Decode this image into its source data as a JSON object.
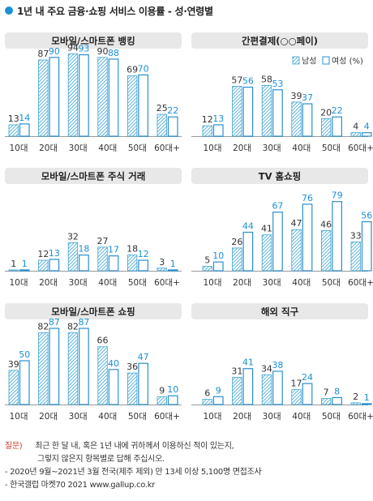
{
  "title": "1년 내 주요 금융·쇼핑 서비스 이용률 - 성·연령별",
  "legend": {
    "male": "남성",
    "female": "여성 (%)"
  },
  "colors": {
    "male": "#3aa3d2",
    "female": "#2a8fd0",
    "female_label": "#1b8fd8",
    "accent": "#1b8fd8",
    "header_bg": "#e8e8e8",
    "axis": "#999999"
  },
  "categories": [
    "10대",
    "20대",
    "30대",
    "40대",
    "50대",
    "60대+"
  ],
  "footer": {
    "question_label": "질문)",
    "question_line1": "최근 한 달 내, 혹은 1년 내에 귀하께서 이용하신 적이 있는지,",
    "question_line2": "그렇지 않은지 항목별로 답해 주십시오.",
    "note1": "- 2020년 9월~2021년 3월 전국(제주 제외) 만 13세 이상 5,100명 면접조사",
    "note2": "- 한국갤럽 마켓70 2021 www.gallup.co.kr"
  },
  "chart_data": [
    {
      "type": "bar",
      "title": "모바일/스마트폰 뱅킹",
      "categories": [
        "10대",
        "20대",
        "30대",
        "40대",
        "50대",
        "60대+"
      ],
      "series": [
        {
          "name": "남성",
          "values": [
            13,
            87,
            94,
            90,
            69,
            25
          ]
        },
        {
          "name": "여성 (%)",
          "values": [
            14,
            90,
            93,
            88,
            70,
            22
          ]
        }
      ],
      "ylim": [
        0,
        100
      ]
    },
    {
      "type": "bar",
      "title": "간편결제(○○페이)",
      "categories": [
        "10대",
        "20대",
        "30대",
        "40대",
        "50대",
        "60대+"
      ],
      "series": [
        {
          "name": "남성",
          "values": [
            12,
            57,
            58,
            39,
            20,
            4
          ]
        },
        {
          "name": "여성 (%)",
          "values": [
            13,
            56,
            53,
            37,
            22,
            4
          ]
        }
      ],
      "ylim": [
        0,
        100
      ]
    },
    {
      "type": "bar",
      "title": "모바일/스마트폰 주식 거래",
      "categories": [
        "10대",
        "20대",
        "30대",
        "40대",
        "50대",
        "60대+"
      ],
      "series": [
        {
          "name": "남성",
          "values": [
            1,
            12,
            32,
            27,
            18,
            3
          ]
        },
        {
          "name": "여성 (%)",
          "values": [
            1,
            13,
            18,
            17,
            12,
            1
          ]
        }
      ],
      "ylim": [
        0,
        100
      ]
    },
    {
      "type": "bar",
      "title": "TV 홈쇼핑",
      "categories": [
        "10대",
        "20대",
        "30대",
        "40대",
        "50대",
        "60대+"
      ],
      "series": [
        {
          "name": "남성",
          "values": [
            5,
            26,
            41,
            47,
            46,
            33
          ]
        },
        {
          "name": "여성 (%)",
          "values": [
            10,
            44,
            67,
            76,
            79,
            56
          ]
        }
      ],
      "ylim": [
        0,
        100
      ]
    },
    {
      "type": "bar",
      "title": "모바일/스마트폰 쇼핑",
      "categories": [
        "10대",
        "20대",
        "30대",
        "40대",
        "50대",
        "60대+"
      ],
      "series": [
        {
          "name": "남성",
          "values": [
            39,
            82,
            82,
            66,
            36,
            9
          ]
        },
        {
          "name": "여성 (%)",
          "values": [
            50,
            87,
            87,
            40,
            47,
            10
          ]
        }
      ],
      "ylim": [
        0,
        100
      ]
    },
    {
      "type": "bar",
      "title": "해외 직구",
      "categories": [
        "10대",
        "20대",
        "30대",
        "40대",
        "50대",
        "60대+"
      ],
      "series": [
        {
          "name": "남성",
          "values": [
            6,
            31,
            34,
            17,
            7,
            2
          ]
        },
        {
          "name": "여성 (%)",
          "values": [
            9,
            41,
            38,
            24,
            8,
            1
          ]
        }
      ],
      "ylim": [
        0,
        100
      ]
    }
  ]
}
